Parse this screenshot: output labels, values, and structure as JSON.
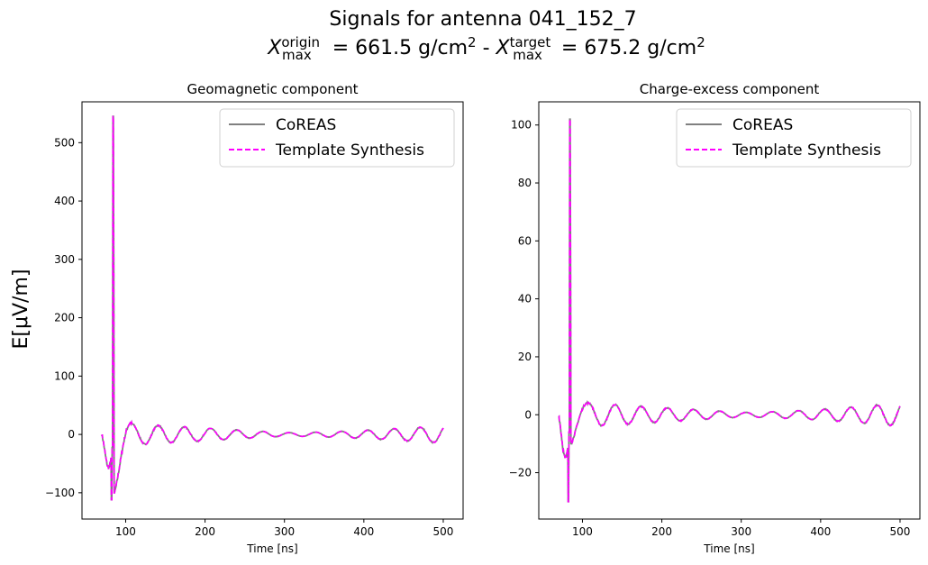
{
  "figure": {
    "suptitle_line1": "Signals for antenna 041_152_7",
    "xmax_origin": "661.5 g/cm",
    "xmax_target": "675.2 g/cm",
    "shared_ylabel": "E[μV/m]"
  },
  "chart_data": [
    {
      "type": "line",
      "title": "Geomagnetic component",
      "xlabel": "Time [ns]",
      "ylabel": "E[μV/m]",
      "xlim": [
        45,
        525
      ],
      "ylim": [
        -145,
        570
      ],
      "xticks": [
        100,
        200,
        300,
        400,
        500
      ],
      "yticks": [
        -100,
        0,
        100,
        200,
        300,
        400,
        500
      ],
      "legend_position": "top-right",
      "grid": false,
      "pulse": {
        "t0": 84,
        "peak": 545,
        "neg1": -112,
        "neg2": -100,
        "pre_min": -75
      },
      "oscillation": {
        "start_amp": 18,
        "mid_amp": 3,
        "end_amp": 15,
        "period": 33
      },
      "series": [
        {
          "name": "CoREAS",
          "color": "#808080",
          "style": "solid"
        },
        {
          "name": "Template Synthesis",
          "color": "#ff00ff",
          "style": "dashed"
        }
      ]
    },
    {
      "type": "line",
      "title": "Charge-excess component",
      "xlabel": "Time [ns]",
      "ylabel": "",
      "xlim": [
        45,
        525
      ],
      "ylim": [
        -36,
        108
      ],
      "xticks": [
        100,
        200,
        300,
        400,
        500
      ],
      "yticks": [
        -20,
        0,
        20,
        40,
        60,
        80,
        100
      ],
      "legend_position": "top-right",
      "grid": false,
      "pulse": {
        "t0": 84,
        "peak": 102,
        "neg1": -30,
        "neg2": -10,
        "pre_min": -20
      },
      "oscillation": {
        "start_amp": 4,
        "mid_amp": 0.8,
        "end_amp": 4,
        "period": 33
      },
      "series": [
        {
          "name": "CoREAS",
          "color": "#808080",
          "style": "solid"
        },
        {
          "name": "Template Synthesis",
          "color": "#ff00ff",
          "style": "dashed"
        }
      ]
    }
  ]
}
